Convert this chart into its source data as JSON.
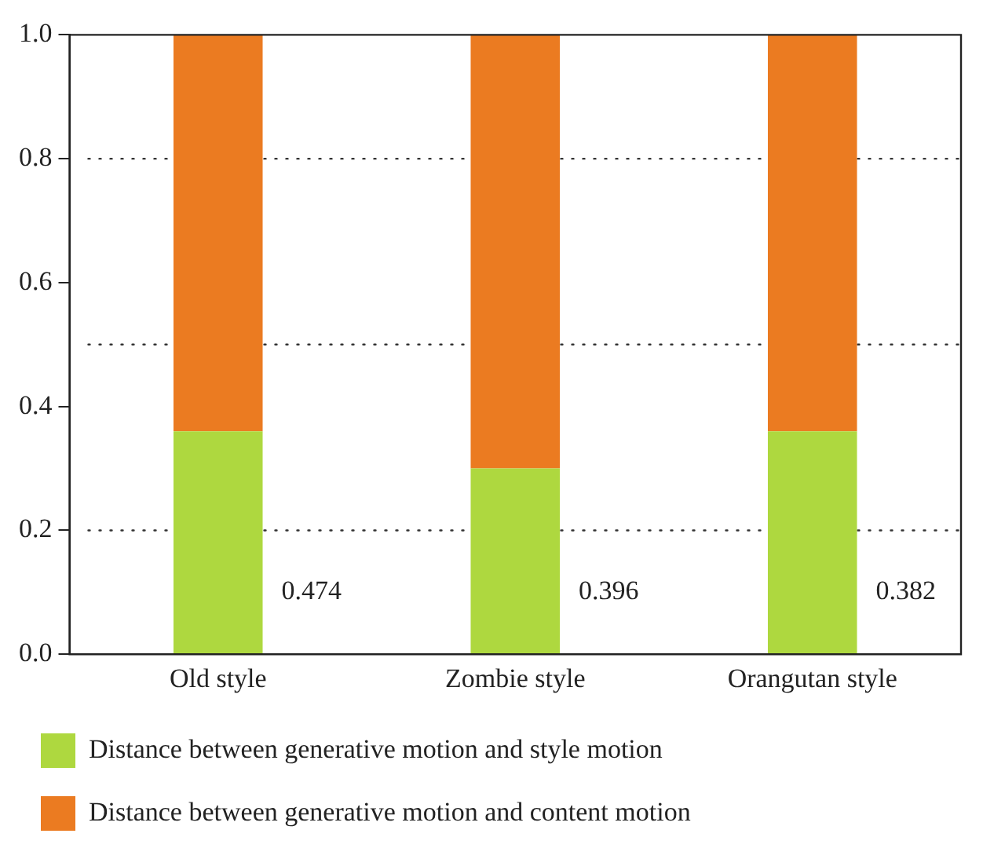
{
  "chart_data": {
    "type": "bar",
    "stacked": true,
    "categories": [
      "Old style",
      "Zombie style",
      "Orangutan style"
    ],
    "series": [
      {
        "name": "Distance between generative motion and style motion",
        "color": "#aed83f",
        "values": [
          0.36,
          0.3,
          0.36
        ]
      },
      {
        "name": "Distance between generative motion and content motion",
        "color": "#eb7b21",
        "values": [
          0.64,
          0.7,
          0.64
        ]
      }
    ],
    "ylim": [
      0,
      1
    ],
    "yticks": [
      {
        "value": 0,
        "label": "0.0"
      },
      {
        "value": 0.2,
        "label": "0.2"
      },
      {
        "value": 0.4,
        "label": "0.4"
      },
      {
        "value": 0.6,
        "label": "0.6"
      },
      {
        "value": 0.8,
        "label": "0.8"
      },
      {
        "value": 1,
        "label": "1.0"
      }
    ],
    "ref_lines": [
      {
        "axis": "y",
        "value": 0.2,
        "line_style": "dotted"
      },
      {
        "axis": "y",
        "value": 0.5,
        "line_style": "dotted"
      },
      {
        "axis": "y",
        "value": 0.8,
        "line_style": "dotted"
      }
    ],
    "annotations": [
      "0.474",
      "0.396",
      "0.382"
    ],
    "grid": false,
    "legend": "bottom"
  }
}
